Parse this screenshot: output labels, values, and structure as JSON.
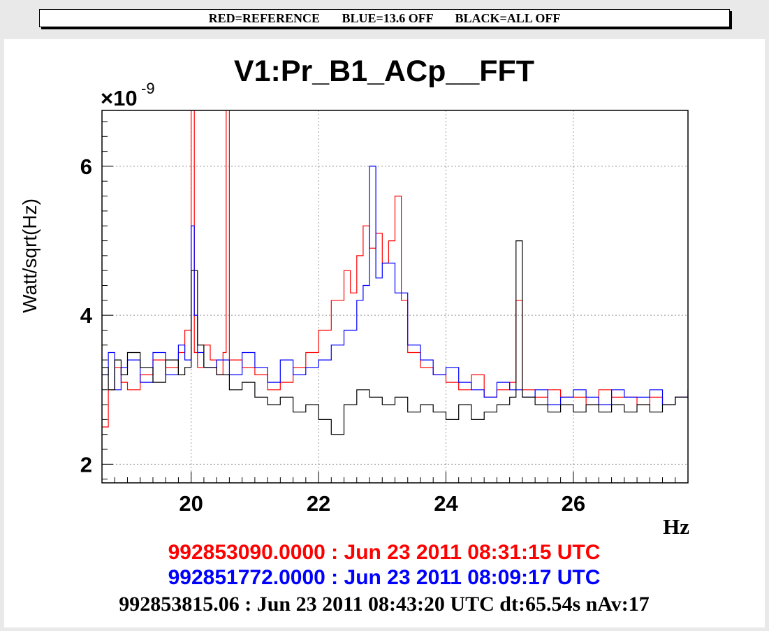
{
  "banner": {
    "text": "RED=REFERENCE       BLUE=13.6 OFF       BLACK=ALL OFF"
  },
  "chart_data": {
    "type": "line",
    "title": "V1:Pr_B1_ACp__FFT",
    "xlabel": "Hz",
    "ylabel": "Watt/sqrt(Hz)",
    "y_multiplier": "×10",
    "y_multiplier_exp": "-9",
    "xlim": [
      18.6,
      27.8
    ],
    "ylim": [
      1.75,
      6.75
    ],
    "x_ticks": [
      20,
      22,
      24,
      26
    ],
    "x_tick_labels": [
      "20",
      "22",
      "24",
      "26"
    ],
    "y_ticks": [
      2,
      4,
      6
    ],
    "y_tick_labels": [
      "2",
      "4",
      "6"
    ],
    "grid": true,
    "series": [
      {
        "color": "#ff0000",
        "x": [
          18.6,
          18.7,
          18.8,
          18.9,
          19.0,
          19.2,
          19.4,
          19.6,
          19.8,
          19.9,
          20.0,
          20.05,
          20.1,
          20.2,
          20.3,
          20.4,
          20.5,
          20.55,
          20.6,
          20.8,
          21.0,
          21.2,
          21.4,
          21.6,
          21.8,
          22.0,
          22.2,
          22.4,
          22.5,
          22.6,
          22.7,
          22.8,
          22.9,
          23.0,
          23.1,
          23.2,
          23.3,
          23.4,
          23.6,
          23.8,
          24.0,
          24.2,
          24.4,
          24.6,
          24.8,
          25.0,
          25.1,
          25.2,
          25.4,
          25.6,
          25.8,
          26.0,
          26.2,
          26.4,
          26.6,
          26.8,
          27.0,
          27.2,
          27.4,
          27.6,
          27.8
        ],
        "values": [
          2.5,
          3.0,
          3.3,
          3.1,
          3.0,
          3.2,
          3.4,
          3.3,
          3.5,
          3.8,
          7.0,
          3.5,
          3.3,
          3.6,
          3.4,
          3.2,
          3.5,
          7.0,
          3.4,
          3.3,
          3.2,
          3.0,
          3.1,
          3.3,
          3.5,
          3.8,
          4.2,
          4.6,
          4.3,
          4.8,
          5.2,
          4.9,
          5.1,
          4.7,
          5.0,
          5.6,
          4.2,
          3.5,
          3.3,
          3.2,
          3.1,
          3.0,
          3.2,
          2.9,
          3.0,
          3.1,
          4.2,
          3.0,
          2.9,
          3.0,
          2.9,
          2.9,
          2.8,
          3.0,
          2.9,
          2.9,
          2.8,
          2.9,
          2.8,
          2.9,
          3.0
        ]
      },
      {
        "color": "#0000ff",
        "x": [
          18.6,
          18.7,
          18.8,
          18.9,
          19.0,
          19.2,
          19.4,
          19.6,
          19.8,
          19.9,
          20.0,
          20.05,
          20.1,
          20.2,
          20.4,
          20.6,
          20.8,
          21.0,
          21.2,
          21.4,
          21.6,
          21.8,
          22.0,
          22.2,
          22.4,
          22.6,
          22.7,
          22.8,
          22.9,
          23.0,
          23.2,
          23.4,
          23.6,
          23.8,
          24.0,
          24.2,
          24.4,
          24.6,
          24.8,
          25.0,
          25.2,
          25.4,
          25.6,
          25.8,
          26.0,
          26.2,
          26.4,
          26.6,
          26.8,
          27.0,
          27.2,
          27.4,
          27.6,
          27.8
        ],
        "values": [
          3.2,
          3.5,
          3.0,
          3.3,
          3.4,
          3.1,
          3.5,
          3.2,
          3.6,
          3.4,
          5.2,
          4.0,
          3.5,
          3.3,
          3.4,
          3.2,
          3.5,
          3.3,
          3.1,
          3.4,
          3.2,
          3.3,
          3.4,
          3.6,
          3.8,
          4.2,
          4.4,
          6.0,
          4.5,
          4.7,
          4.3,
          3.6,
          3.4,
          3.2,
          3.3,
          3.1,
          3.0,
          2.9,
          3.1,
          3.0,
          2.9,
          3.0,
          2.8,
          2.9,
          3.0,
          2.9,
          2.8,
          3.0,
          2.9,
          2.9,
          3.0,
          2.8,
          2.9,
          2.9
        ]
      },
      {
        "color": "#000000",
        "x": [
          18.6,
          18.7,
          18.8,
          18.9,
          19.0,
          19.2,
          19.4,
          19.6,
          19.8,
          19.9,
          20.0,
          20.1,
          20.2,
          20.4,
          20.6,
          20.8,
          21.0,
          21.2,
          21.4,
          21.6,
          21.8,
          22.0,
          22.2,
          22.4,
          22.6,
          22.8,
          23.0,
          23.2,
          23.4,
          23.6,
          23.8,
          24.0,
          24.2,
          24.4,
          24.6,
          24.8,
          25.0,
          25.1,
          25.2,
          25.4,
          25.6,
          25.8,
          26.0,
          26.2,
          26.4,
          26.6,
          26.8,
          27.0,
          27.2,
          27.4,
          27.6,
          27.8
        ],
        "values": [
          3.3,
          3.0,
          3.4,
          3.2,
          3.5,
          3.3,
          3.1,
          3.4,
          3.2,
          3.3,
          4.6,
          3.6,
          3.3,
          3.2,
          3.0,
          3.1,
          2.9,
          2.8,
          2.9,
          2.7,
          2.8,
          2.6,
          2.4,
          2.8,
          3.0,
          2.9,
          2.8,
          2.9,
          2.7,
          2.8,
          2.7,
          2.6,
          2.8,
          2.6,
          2.7,
          2.8,
          2.9,
          5.0,
          2.9,
          2.8,
          2.7,
          2.8,
          2.7,
          2.8,
          2.7,
          2.8,
          2.7,
          2.8,
          2.7,
          2.8,
          2.9,
          3.0
        ]
      }
    ]
  },
  "footer": {
    "red_line": "992853090.0000 : Jun 23 2011 08:31:15 UTC",
    "blue_line": "992851772.0000 : Jun 23 2011 08:09:17 UTC",
    "black_line": "992853815.06 : Jun 23 2011 08:43:20 UTC dt:65.54s nAv:17"
  }
}
